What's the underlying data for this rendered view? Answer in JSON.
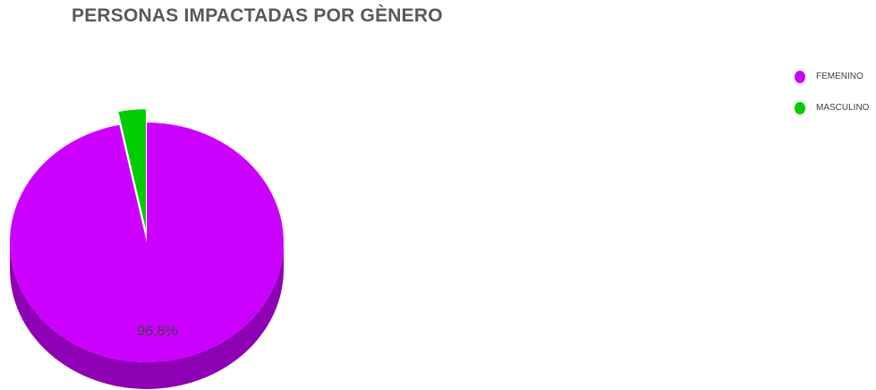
{
  "chart_data": {
    "type": "pie",
    "title": "PERSONAS IMPACTADAS POR GÈNERO",
    "slices": [
      {
        "label": "FEMENINO",
        "value": 96.8,
        "color": "#CC00FF",
        "side_color": "#8E00B3",
        "data_label": "96,8%"
      },
      {
        "label": "MASCULINO",
        "value": 3.2,
        "color": "#00CC00",
        "side_color": "#009900",
        "data_label": ""
      }
    ],
    "legend_position": "top-right",
    "three_d": true
  }
}
